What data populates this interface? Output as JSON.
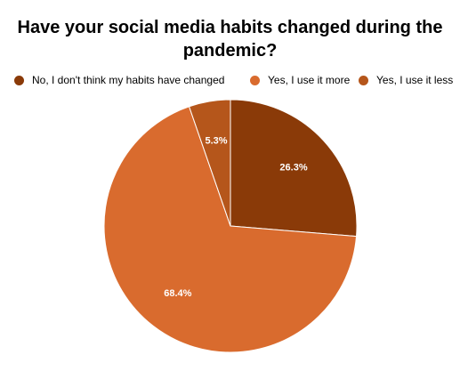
{
  "chart_data": {
    "type": "pie",
    "title_lines": [
      "Have your social media habits changed during the",
      "pandemic?"
    ],
    "series": [
      {
        "name": "No, I don't think my habits have changed",
        "value": 26.3,
        "label": "26.3%",
        "color": "#8a3a08"
      },
      {
        "name": "Yes, I use it more",
        "value": 68.4,
        "label": "68.4%",
        "color": "#d96b2e"
      },
      {
        "name": "Yes, I use it less",
        "value": 5.3,
        "label": "5.3%",
        "color": "#b5561b"
      }
    ],
    "legend_position": "top",
    "start_angle": "12 o'clock",
    "direction": "clockwise",
    "slice_border_color": "#ffffff"
  }
}
